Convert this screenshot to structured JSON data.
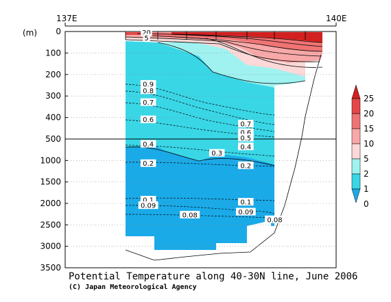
{
  "chart_data": {
    "type": "contour",
    "title": "Potential Temperature along 40-30N line, June 2006",
    "credit": "(C) Japan Meteorological Agency",
    "ylabel": "(m)",
    "xlim": [
      "137E",
      "140E"
    ],
    "x_ticks": [
      "137E",
      "140E"
    ],
    "y_ticks": [
      "0",
      "100",
      "200",
      "300",
      "400",
      "500",
      "1000",
      "1500",
      "2000",
      "2500",
      "3000",
      "3500"
    ],
    "y_axis_break_at": 500,
    "colorbar": {
      "levels": [
        "25",
        "20",
        "15",
        "10",
        "5",
        "2",
        "1",
        "0"
      ],
      "colors": [
        "#d32020",
        "#e54747",
        "#f07474",
        "#f8a8a8",
        "#fcd8d8",
        "#9ff2f0",
        "#39d6e6",
        "#1aaae8"
      ]
    },
    "contour_labels": [
      {
        "text": "20",
        "x_lon": 137.9,
        "depth_m": 5
      },
      {
        "text": "5",
        "x_lon": 137.9,
        "depth_m": 30
      },
      {
        "text": "0.9",
        "x_lon": 137.92,
        "depth_m": 245
      },
      {
        "text": "0.8",
        "x_lon": 137.92,
        "depth_m": 275
      },
      {
        "text": "0.7",
        "x_lon": 137.92,
        "depth_m": 330
      },
      {
        "text": "0.6",
        "x_lon": 137.92,
        "depth_m": 410
      },
      {
        "text": "0.7",
        "x_lon": 139.0,
        "depth_m": 430
      },
      {
        "text": "0.6",
        "x_lon": 139.0,
        "depth_m": 470
      },
      {
        "text": "0.5",
        "x_lon": 139.0,
        "depth_m": 495
      },
      {
        "text": "0.4",
        "x_lon": 137.92,
        "depth_m": 620
      },
      {
        "text": "0.4",
        "x_lon": 139.0,
        "depth_m": 680
      },
      {
        "text": "0.3",
        "x_lon": 138.68,
        "depth_m": 830
      },
      {
        "text": "0.2",
        "x_lon": 137.92,
        "depth_m": 1070
      },
      {
        "text": "0.2",
        "x_lon": 139.0,
        "depth_m": 1120
      },
      {
        "text": "0.1",
        "x_lon": 137.92,
        "depth_m": 1920
      },
      {
        "text": "0.09",
        "x_lon": 137.92,
        "depth_m": 2050
      },
      {
        "text": "0.1",
        "x_lon": 139.0,
        "depth_m": 1970
      },
      {
        "text": "0.09",
        "x_lon": 139.0,
        "depth_m": 2200
      },
      {
        "text": "0.08",
        "x_lon": 138.38,
        "depth_m": 2270
      },
      {
        "text": "0.08",
        "x_lon": 139.32,
        "depth_m": 2380
      }
    ]
  }
}
